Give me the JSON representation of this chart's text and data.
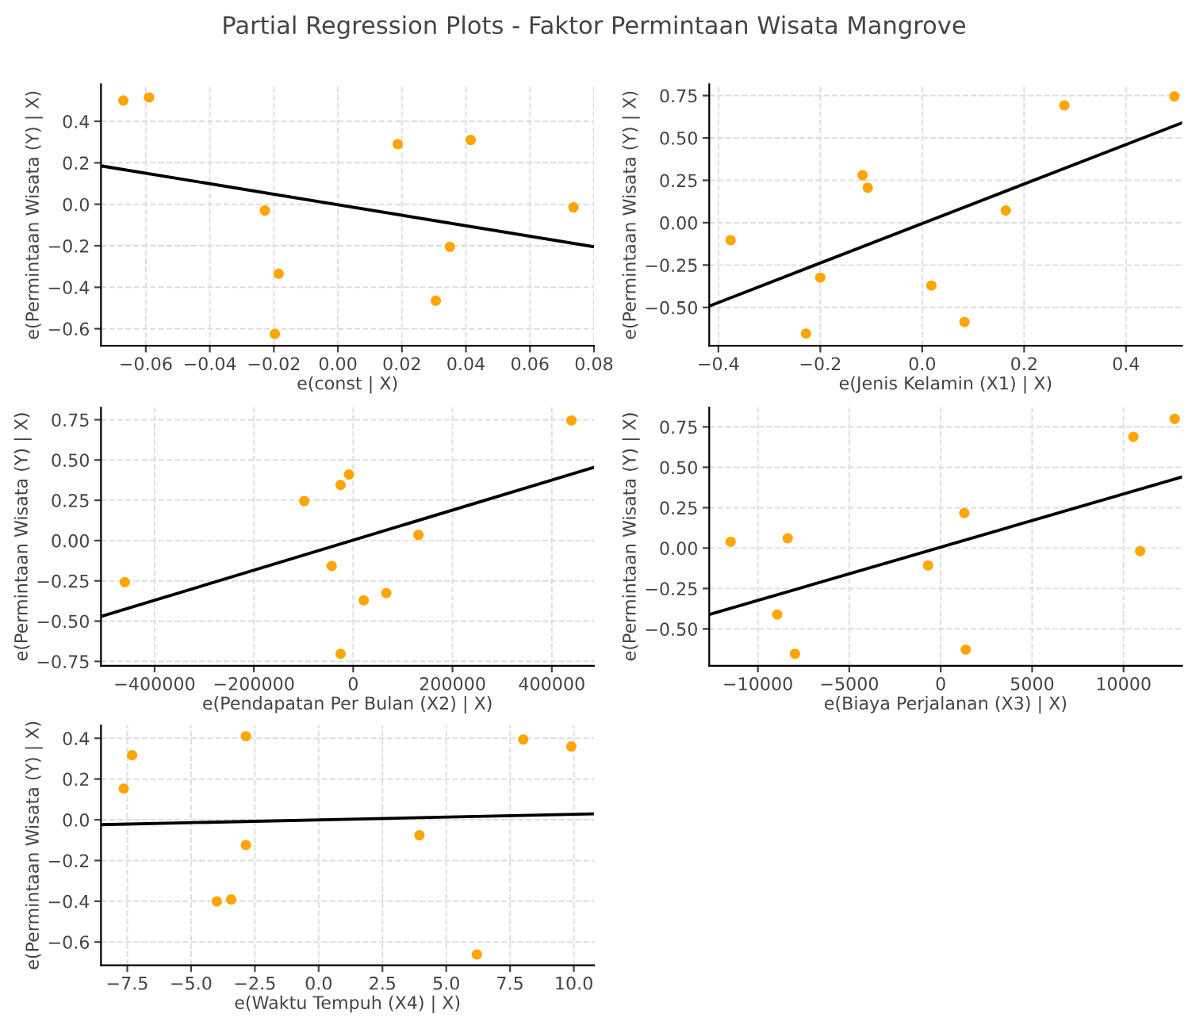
{
  "chart_data": [
    {
      "type": "scatter",
      "title": "Partial Regression Plots - Faktor Permintaan Wisata Mangrove",
      "xlabel": "e(const | X)",
      "ylabel": "e(Permintaan Wisata (Y) | X)",
      "grid": true,
      "legend": false,
      "xlim": [
        -0.074,
        0.08
      ],
      "ylim": [
        -0.682,
        0.578
      ],
      "xticks": [
        {
          "value": -0.06,
          "label": "−0.06"
        },
        {
          "value": -0.04,
          "label": "−0.04"
        },
        {
          "value": -0.02,
          "label": "−0.02"
        },
        {
          "value": 0,
          "label": "0.00"
        },
        {
          "value": 0.02,
          "label": "0.02"
        },
        {
          "value": 0.04,
          "label": "0.04"
        },
        {
          "value": 0.06,
          "label": "0.06"
        },
        {
          "value": 0.08,
          "label": "0.08"
        }
      ],
      "yticks": [
        {
          "value": -0.6,
          "label": "−0.6"
        },
        {
          "value": -0.4,
          "label": "−0.4"
        },
        {
          "value": -0.2,
          "label": "−0.2"
        },
        {
          "value": 0,
          "label": "0.0"
        },
        {
          "value": 0.2,
          "label": "0.2"
        },
        {
          "value": 0.4,
          "label": "0.4"
        }
      ],
      "series": [
        {
          "color": "#ffa500",
          "marker": "circle",
          "x": [
            -0.067,
            -0.059,
            -0.0228,
            -0.0185,
            -0.0197,
            0.0187,
            0.0306,
            0.035,
            0.0415,
            0.0736
          ],
          "values": [
            0.5,
            0.515,
            -0.03,
            -0.335,
            -0.625,
            0.29,
            -0.465,
            -0.205,
            0.31,
            -0.015
          ]
        },
        {
          "type": "line",
          "color": "#000000",
          "marker": "none",
          "line_style": "solid",
          "x": [
            -0.074,
            0.08
          ],
          "values": [
            0.185,
            -0.205
          ]
        }
      ]
    },
    {
      "type": "scatter",
      "xlabel": "e(Jenis Kelamin (X1) | X)",
      "ylabel": "e(Permintaan Wisata (Y) | X)",
      "grid": true,
      "legend": false,
      "xlim": [
        -0.418,
        0.51
      ],
      "ylim": [
        -0.726,
        0.816
      ],
      "xticks": [
        {
          "value": -0.4,
          "label": "−0.4"
        },
        {
          "value": -0.2,
          "label": "−0.2"
        },
        {
          "value": 0,
          "label": "0.0"
        },
        {
          "value": 0.2,
          "label": "0.2"
        },
        {
          "value": 0.4,
          "label": "0.4"
        }
      ],
      "yticks": [
        {
          "value": -0.5,
          "label": "−0.50"
        },
        {
          "value": -0.25,
          "label": "−0.25"
        },
        {
          "value": 0,
          "label": "0.00"
        },
        {
          "value": 0.25,
          "label": "0.25"
        },
        {
          "value": 0.5,
          "label": "0.50"
        },
        {
          "value": 0.75,
          "label": "0.75"
        }
      ],
      "series": [
        {
          "color": "#ffa500",
          "marker": "circle",
          "x": [
            -0.376,
            -0.228,
            -0.2,
            -0.117,
            -0.107,
            0.018,
            0.083,
            0.164,
            0.279,
            0.495
          ],
          "values": [
            -0.103,
            -0.654,
            -0.324,
            0.28,
            0.206,
            -0.371,
            -0.586,
            0.072,
            0.692,
            0.745
          ]
        },
        {
          "type": "line",
          "color": "#000000",
          "marker": "none",
          "line_style": "solid",
          "x": [
            -0.418,
            0.51
          ],
          "values": [
            -0.492,
            0.589
          ]
        }
      ]
    },
    {
      "type": "scatter",
      "xlabel": "e(Pendapatan Per Bulan (X2) | X)",
      "ylabel": "e(Permintaan Wisata (Y) | X)",
      "grid": true,
      "legend": false,
      "xlim": [
        -508000,
        485000
      ],
      "ylim": [
        -0.777,
        0.826
      ],
      "xticks": [
        {
          "value": -400000,
          "label": "−400000"
        },
        {
          "value": -200000,
          "label": "−200000"
        },
        {
          "value": 0,
          "label": "0"
        },
        {
          "value": 200000,
          "label": "200000"
        },
        {
          "value": 400000,
          "label": "400000"
        }
      ],
      "yticks": [
        {
          "value": -0.75,
          "label": "−0.75"
        },
        {
          "value": -0.5,
          "label": "−0.50"
        },
        {
          "value": -0.25,
          "label": "−0.25"
        },
        {
          "value": 0,
          "label": "0.00"
        },
        {
          "value": 0.25,
          "label": "0.25"
        },
        {
          "value": 0.5,
          "label": "0.50"
        },
        {
          "value": 0.75,
          "label": "0.75"
        }
      ],
      "series": [
        {
          "color": "#ffa500",
          "marker": "circle",
          "x": [
            -460000,
            -98500,
            -25400,
            -8500,
            -43400,
            21200,
            66700,
            131400,
            -25400,
            439600
          ],
          "values": [
            -0.258,
            0.245,
            0.345,
            0.41,
            -0.158,
            -0.371,
            -0.326,
            0.035,
            -0.703,
            0.745
          ]
        },
        {
          "type": "line",
          "color": "#000000",
          "marker": "none",
          "line_style": "solid",
          "x": [
            -508000,
            485000
          ],
          "values": [
            -0.471,
            0.455
          ]
        }
      ]
    },
    {
      "type": "scatter",
      "xlabel": "e(Biaya Perjalanan (X3) | X)",
      "ylabel": "e(Permintaan Wisata (Y) | X)",
      "grid": true,
      "legend": false,
      "xlim": [
        -12660,
        13200
      ],
      "ylim": [
        -0.728,
        0.87
      ],
      "xticks": [
        {
          "value": -10000,
          "label": "−10000"
        },
        {
          "value": -5000,
          "label": "−5000"
        },
        {
          "value": 0,
          "label": "0"
        },
        {
          "value": 5000,
          "label": "5000"
        },
        {
          "value": 10000,
          "label": "10000"
        }
      ],
      "yticks": [
        {
          "value": -0.5,
          "label": "−0.50"
        },
        {
          "value": -0.25,
          "label": "−0.25"
        },
        {
          "value": 0,
          "label": "0.00"
        },
        {
          "value": 0.25,
          "label": "0.25"
        },
        {
          "value": 0.5,
          "label": "0.50"
        },
        {
          "value": 0.75,
          "label": "0.75"
        }
      ],
      "series": [
        {
          "color": "#ffa500",
          "marker": "circle",
          "x": [
            -11490,
            -8370,
            -8940,
            -7970,
            -690,
            1290,
            1370,
            10540,
            10910,
            12800
          ],
          "values": [
            0.039,
            0.061,
            -0.411,
            -0.654,
            -0.107,
            0.217,
            -0.628,
            0.689,
            -0.019,
            0.8
          ]
        },
        {
          "type": "line",
          "color": "#000000",
          "marker": "none",
          "line_style": "solid",
          "x": [
            -12660,
            13200
          ],
          "values": [
            -0.411,
            0.44
          ]
        }
      ]
    },
    {
      "type": "scatter",
      "xlabel": "e(Waktu Tempuh (X4) | X)",
      "ylabel": "e(Permintaan Wisata (Y) | X)",
      "grid": true,
      "legend": false,
      "xlim": [
        -8.53,
        10.79
      ],
      "ylim": [
        -0.714,
        0.463
      ],
      "xticks": [
        {
          "value": -7.5,
          "label": "−7.5"
        },
        {
          "value": -5,
          "label": "−5.0"
        },
        {
          "value": -2.5,
          "label": "−2.5"
        },
        {
          "value": 0,
          "label": "0.0"
        },
        {
          "value": 2.5,
          "label": "2.5"
        },
        {
          "value": 5,
          "label": "5.0"
        },
        {
          "value": 7.5,
          "label": "7.5"
        },
        {
          "value": 10,
          "label": "10.0"
        }
      ],
      "yticks": [
        {
          "value": -0.6,
          "label": "−0.6"
        },
        {
          "value": -0.4,
          "label": "−0.4"
        },
        {
          "value": -0.2,
          "label": "−0.2"
        },
        {
          "value": 0,
          "label": "0.0"
        },
        {
          "value": 0.2,
          "label": "0.2"
        },
        {
          "value": 0.4,
          "label": "0.4"
        }
      ],
      "series": [
        {
          "color": "#ffa500",
          "marker": "circle",
          "x": [
            -7.64,
            -7.31,
            -2.85,
            -2.85,
            -3.99,
            -3.43,
            3.95,
            6.2,
            8.02,
            9.9
          ],
          "values": [
            0.153,
            0.317,
            0.41,
            -0.124,
            -0.401,
            -0.391,
            -0.076,
            -0.661,
            0.394,
            0.36
          ]
        },
        {
          "type": "line",
          "color": "#000000",
          "marker": "none",
          "line_style": "solid",
          "x": [
            -8.53,
            10.79
          ],
          "values": [
            -0.024,
            0.029
          ]
        }
      ]
    }
  ]
}
